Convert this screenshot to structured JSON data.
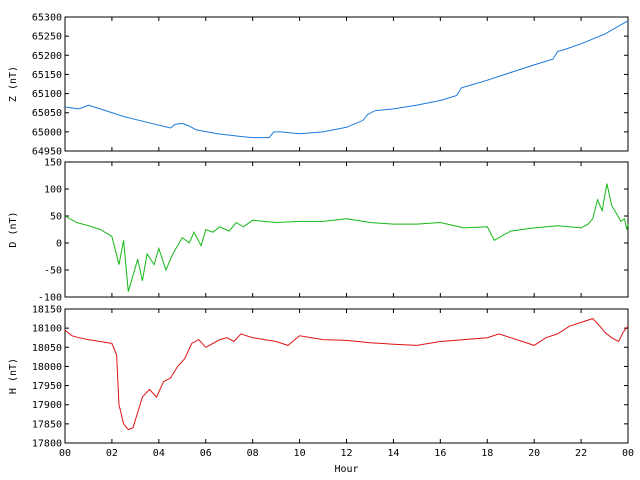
{
  "chart_data": [
    {
      "type": "line",
      "ylabel": "Z (nT)",
      "ylim": [
        64950,
        65300
      ],
      "yticks": [
        "65300",
        "65250",
        "65200",
        "65150",
        "65100",
        "65050",
        "65000",
        "64950"
      ],
      "color": "#1a7ad9",
      "x_range": [
        0,
        24
      ],
      "series": [
        {
          "x": [
            0,
            0.6,
            0.8,
            1.0,
            1.5,
            2.5,
            3.5,
            4.5,
            4.7,
            5.0,
            5.3,
            5.6,
            6.5,
            7.5,
            8.0,
            8.7,
            8.9,
            9.2,
            10.0,
            11.0,
            12.0,
            12.7,
            12.9,
            13.2,
            14.0,
            15.0,
            16.0,
            16.7,
            16.9,
            17.3,
            18.0,
            19.0,
            20.0,
            20.8,
            21.0,
            21.3,
            22.0,
            23.0,
            24.0
          ],
          "y": [
            65065,
            65060,
            65065,
            65070,
            65060,
            65040,
            65025,
            65010,
            65020,
            65022,
            65015,
            65005,
            64995,
            64988,
            64985,
            64985,
            65000,
            65000,
            64995,
            65000,
            65012,
            65030,
            65045,
            65055,
            65060,
            65070,
            65082,
            65095,
            65115,
            65122,
            65135,
            65155,
            65175,
            65190,
            65210,
            65215,
            65230,
            65255,
            65290
          ]
        }
      ]
    },
    {
      "type": "line",
      "ylabel": "D (nT)",
      "ylim": [
        -100,
        150
      ],
      "yticks": [
        "150",
        "100",
        "50",
        "0",
        "-50",
        "-100"
      ],
      "color": "#14b814",
      "x_range": [
        0,
        24
      ],
      "series": [
        {
          "x": [
            0,
            0.5,
            1.0,
            1.5,
            2.0,
            2.3,
            2.5,
            2.7,
            2.9,
            3.1,
            3.3,
            3.5,
            3.8,
            4.0,
            4.3,
            4.6,
            5.0,
            5.3,
            5.5,
            5.8,
            6.0,
            6.3,
            6.6,
            7.0,
            7.3,
            7.6,
            8.0,
            9.0,
            10.0,
            11.0,
            12.0,
            13.0,
            14.0,
            15.0,
            16.0,
            17.0,
            18.0,
            18.3,
            18.7,
            19.0,
            20.0,
            21.0,
            22.0,
            22.3,
            22.5,
            22.7,
            22.9,
            23.1,
            23.3,
            23.5,
            23.7,
            23.85,
            23.95,
            24.0
          ],
          "y": [
            50,
            38,
            32,
            25,
            12,
            -40,
            5,
            -90,
            -60,
            -30,
            -70,
            -20,
            -40,
            -10,
            -50,
            -20,
            10,
            0,
            20,
            -5,
            25,
            20,
            30,
            22,
            38,
            30,
            42,
            38,
            40,
            40,
            45,
            38,
            35,
            35,
            38,
            28,
            30,
            5,
            15,
            22,
            28,
            32,
            28,
            35,
            45,
            80,
            60,
            110,
            70,
            55,
            40,
            45,
            25,
            35
          ]
        }
      ]
    },
    {
      "type": "line",
      "ylabel": "H (nT)",
      "xlabel": "Hour",
      "ylim": [
        17800,
        18150
      ],
      "yticks": [
        "18150",
        "18100",
        "18050",
        "18000",
        "17950",
        "17900",
        "17850",
        "17800"
      ],
      "xticks": [
        "00",
        "02",
        "04",
        "06",
        "08",
        "10",
        "12",
        "14",
        "16",
        "18",
        "20",
        "22",
        "00"
      ],
      "color": "#e01414",
      "x_range": [
        0,
        24
      ],
      "series": [
        {
          "x": [
            0,
            0.3,
            0.6,
            1.0,
            1.5,
            2.0,
            2.2,
            2.3,
            2.5,
            2.7,
            2.9,
            3.1,
            3.3,
            3.6,
            3.9,
            4.2,
            4.5,
            4.8,
            5.1,
            5.4,
            5.7,
            6.0,
            6.3,
            6.6,
            6.9,
            7.2,
            7.5,
            8.0,
            8.5,
            9.0,
            9.5,
            10.0,
            11.0,
            12.0,
            13.0,
            14.0,
            15.0,
            16.0,
            17.0,
            18.0,
            18.5,
            19.0,
            19.5,
            20.0,
            20.5,
            21.0,
            21.5,
            22.0,
            22.5,
            22.8,
            23.0,
            23.3,
            23.6,
            23.8,
            24.0
          ],
          "y": [
            18095,
            18080,
            18075,
            18070,
            18065,
            18060,
            18030,
            17900,
            17850,
            17835,
            17840,
            17880,
            17920,
            17940,
            17920,
            17960,
            17970,
            18000,
            18020,
            18060,
            18070,
            18050,
            18060,
            18070,
            18075,
            18065,
            18085,
            18075,
            18070,
            18065,
            18055,
            18080,
            18070,
            18068,
            18062,
            18058,
            18055,
            18065,
            18070,
            18075,
            18085,
            18075,
            18065,
            18055,
            18075,
            18085,
            18105,
            18115,
            18125,
            18105,
            18090,
            18075,
            18065,
            18090,
            18105
          ]
        }
      ]
    }
  ]
}
